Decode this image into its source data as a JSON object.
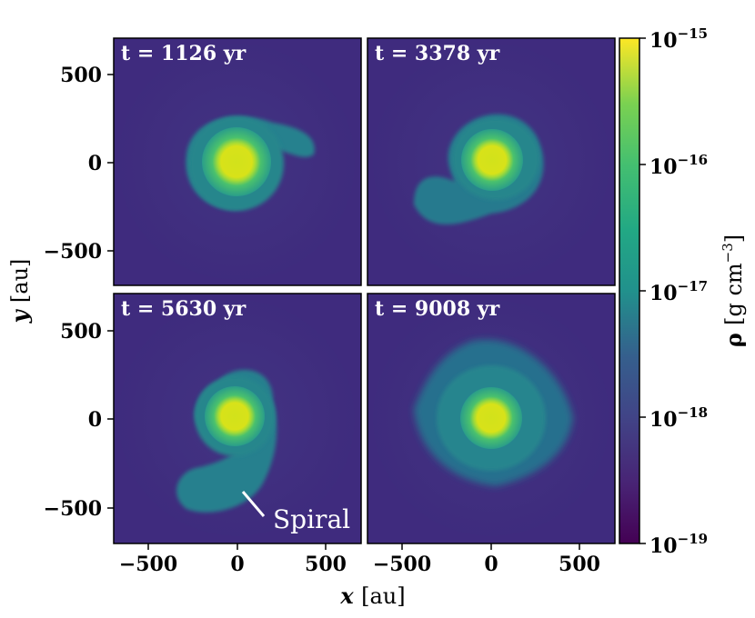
{
  "figure": {
    "panels": [
      {
        "time_label": "t = 1126 yr"
      },
      {
        "time_label": "t = 3378 yr"
      },
      {
        "time_label": "t = 5630 yr"
      },
      {
        "time_label": "t = 9008 yr"
      }
    ],
    "x_axis": {
      "label_var": "x",
      "label_unit": "[au]",
      "ticks": [
        "−500",
        "0",
        "500",
        "−500",
        "0",
        "500"
      ]
    },
    "y_axis": {
      "label_var": "y",
      "label_unit": "[au]",
      "ticks": [
        "500",
        "0",
        "−500",
        "500",
        "0",
        "−500"
      ]
    },
    "colorbar": {
      "label_var": "ρ",
      "label_unit": "[g cm",
      "label_exp": "−3",
      "label_close": "]",
      "tick_base": "10",
      "tick_exps": [
        "−15",
        "−16",
        "−17",
        "−18",
        "−19"
      ]
    },
    "annotation": {
      "text": "Spiral"
    },
    "colors": {
      "background_disk": "#3b2b7e",
      "mid": "#1fa187",
      "core": "#e3e419"
    }
  }
}
